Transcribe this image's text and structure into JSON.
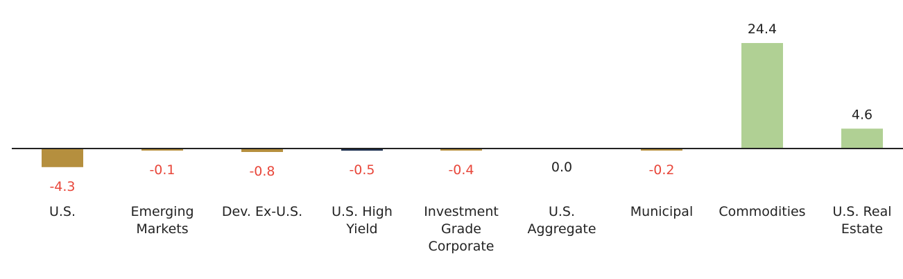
{
  "chart_data": {
    "type": "bar",
    "categories": [
      [
        "U.S."
      ],
      [
        "Emerging",
        "Markets"
      ],
      [
        "Dev. Ex-U.S."
      ],
      [
        "U.S. High",
        "Yield"
      ],
      [
        "Investment",
        "Grade",
        "Corporate"
      ],
      [
        "U.S.",
        "Aggregate"
      ],
      [
        "Municipal"
      ],
      [
        "Commodities"
      ],
      [
        "U.S. Real",
        "Estate"
      ]
    ],
    "values": [
      -4.3,
      -0.1,
      -0.8,
      -0.5,
      -0.4,
      0.0,
      -0.2,
      24.4,
      4.6
    ],
    "value_labels": [
      "-4.3",
      "-0.1",
      "-0.8",
      "-0.5",
      "-0.4",
      "0.0",
      "-0.2",
      "24.4",
      "4.6"
    ],
    "bar_colors": [
      "#b58f3e",
      "#b58f3e",
      "#b58f3e",
      "#1d3050",
      "#b58f3e",
      "#b58f3e",
      "#b58f3e",
      "#b0d094",
      "#b0d094"
    ],
    "label_colors": {
      "negative": "#e8463a",
      "nonnegative": "#222222"
    },
    "axis_color": "#222222"
  }
}
